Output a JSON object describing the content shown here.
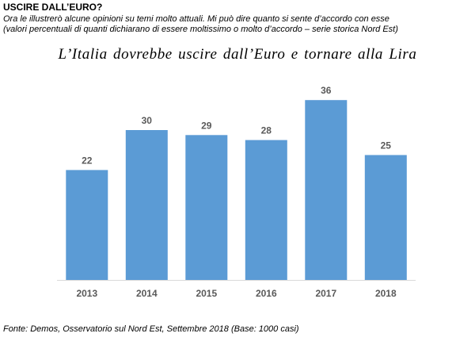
{
  "header": {
    "heading": "USCIRE DALL’EURO?",
    "subtitle_line1": "Ora le illustrerò alcune opinioni su temi molto attuali. Mi può dire quanto si sente d’accordo con esse",
    "subtitle_line2": "(valori percentuali di quanti dichiarano di essere moltissimo o molto d’accordo – serie storica Nord Est)"
  },
  "footer": {
    "source": "Fonte: Demos, Osservatorio sul Nord Est, Settembre  2018 (Base: 1000 casi)"
  },
  "colors": {
    "bar": "#5b9bd5",
    "axis": "#d9d9d9",
    "label": "#595959"
  },
  "chart_data": {
    "type": "bar",
    "title": "L’Italia  dovrebbe uscire dall’Euro  e tornare alla Lira",
    "categories": [
      "2013",
      "2014",
      "2015",
      "2016",
      "2017",
      "2018"
    ],
    "values": [
      22,
      30,
      29,
      28,
      36,
      25
    ],
    "xlabel": "",
    "ylabel": "",
    "ylim": [
      0,
      40
    ],
    "grid": false,
    "legend": "none",
    "data_labels": true
  }
}
